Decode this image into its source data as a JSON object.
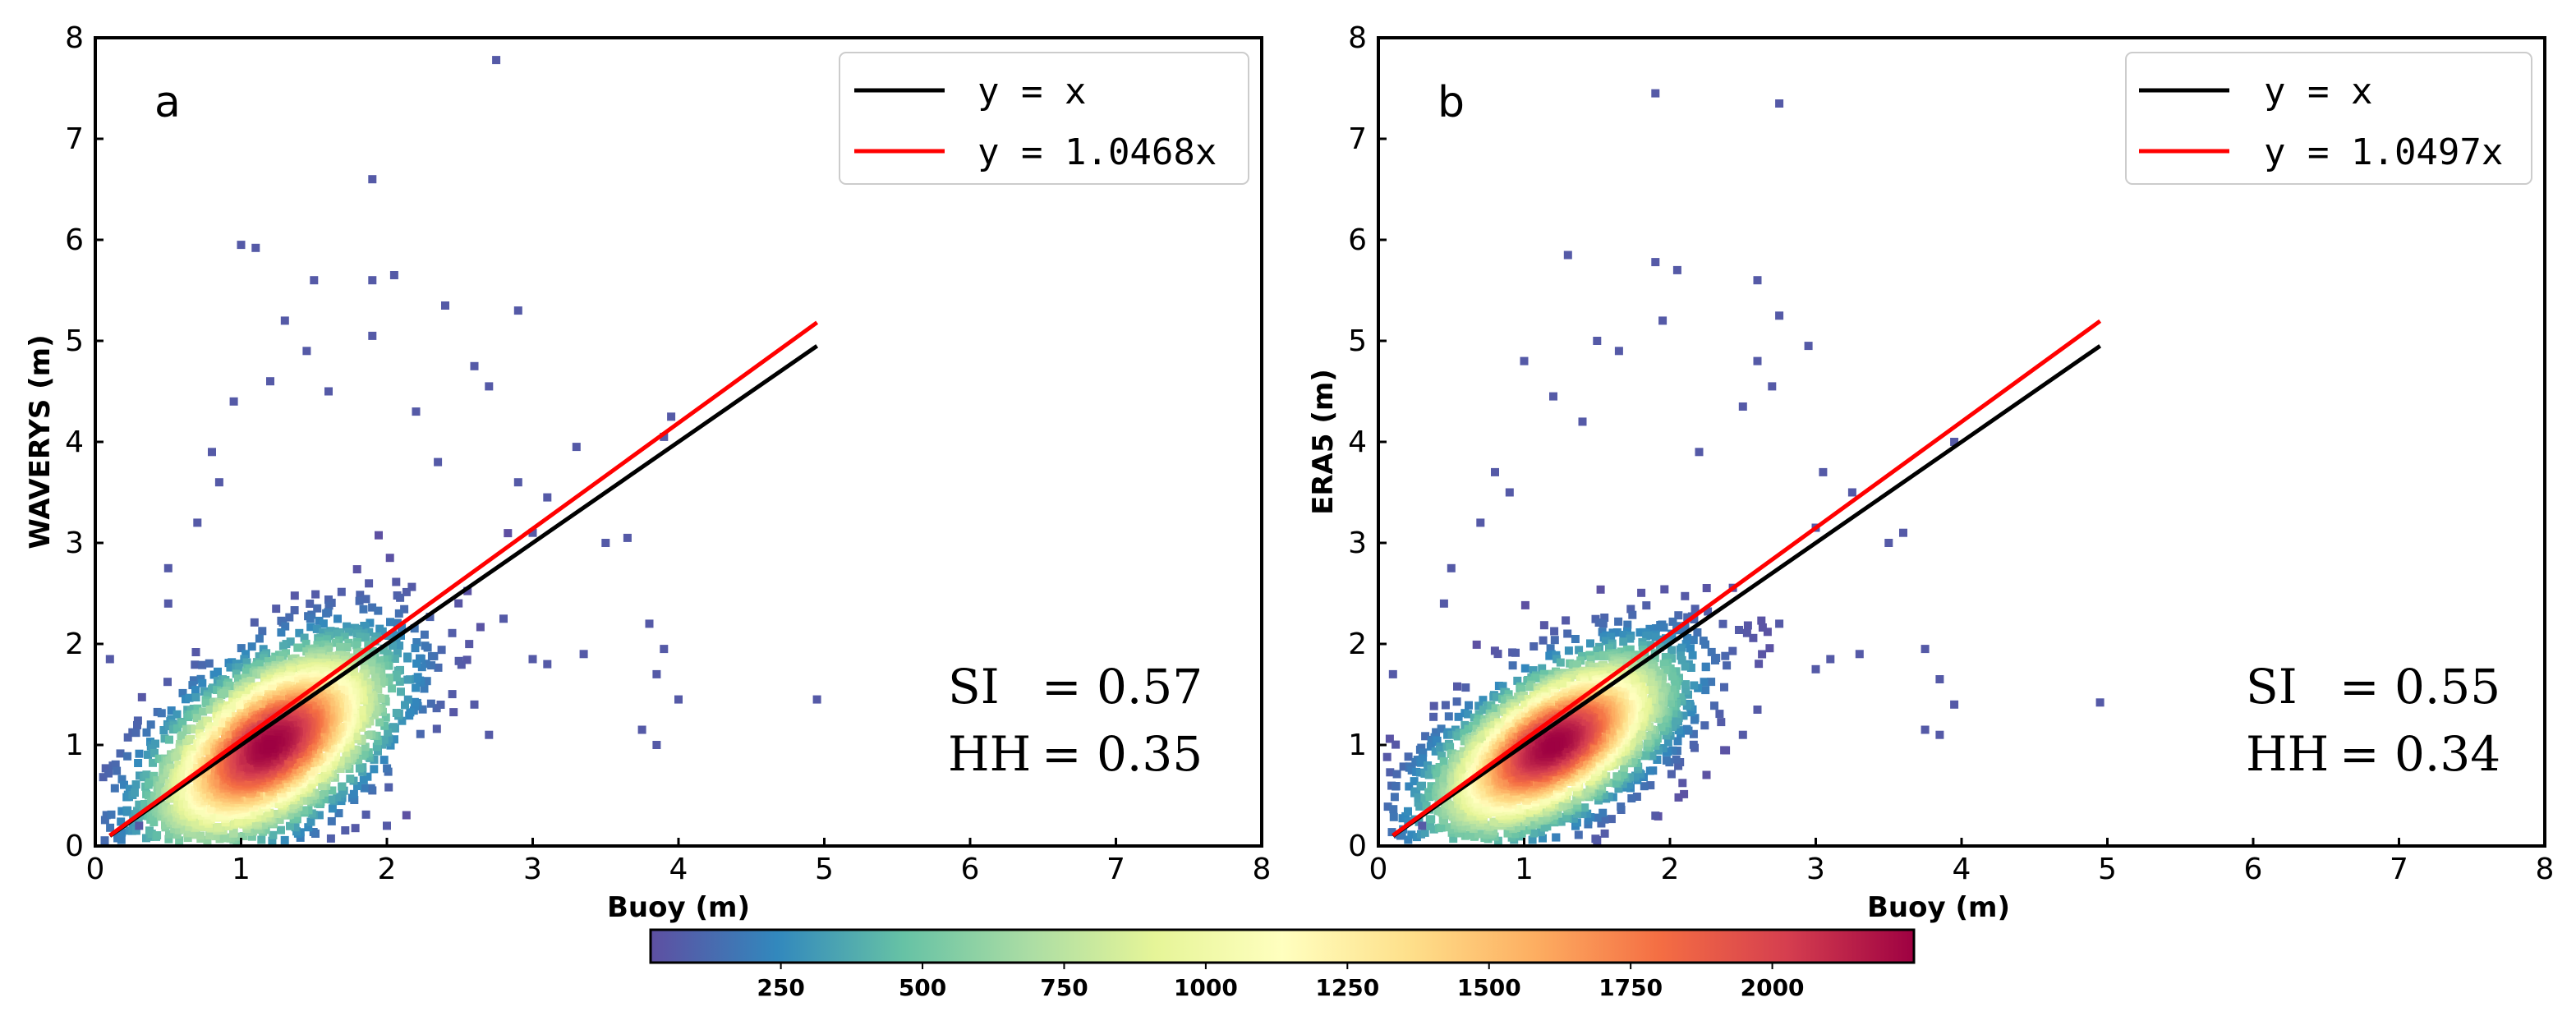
{
  "chart_data": [
    {
      "type": "scatter",
      "panel": "a",
      "xlabel": "Buoy (m)",
      "ylabel": "WAVERYS (m)",
      "xlim": [
        0,
        8
      ],
      "ylim": [
        0,
        8
      ],
      "xticks": [
        "0",
        "1",
        "2",
        "3",
        "4",
        "5",
        "6",
        "7",
        "8"
      ],
      "yticks": [
        "0",
        "1",
        "2",
        "3",
        "4",
        "5",
        "6",
        "7",
        "8"
      ],
      "legend": {
        "position": "top-right",
        "entries": [
          {
            "label": "y = x",
            "color": "#000000",
            "slope": 1.0
          },
          {
            "label": "y = 1.0468x",
            "color": "#ff0000",
            "slope": 1.0468
          }
        ]
      },
      "fit_x_range": [
        0.1,
        4.95
      ],
      "stats": [
        {
          "name": "SI",
          "value": "= 0.57"
        },
        {
          "name": "HH",
          "value": "= 0.35"
        }
      ],
      "density_core": {
        "x_mean": 1.2,
        "y_mean": 1.0,
        "x_sd": 0.45,
        "y_sd": 0.55,
        "rho": 0.55
      },
      "outliers": [
        [
          2.75,
          7.78
        ],
        [
          1.9,
          6.6
        ],
        [
          1.0,
          5.95
        ],
        [
          1.1,
          5.92
        ],
        [
          1.5,
          5.6
        ],
        [
          2.05,
          5.65
        ],
        [
          1.9,
          5.6
        ],
        [
          2.9,
          5.3
        ],
        [
          2.4,
          5.35
        ],
        [
          1.3,
          5.2
        ],
        [
          1.9,
          5.05
        ],
        [
          2.6,
          4.75
        ],
        [
          2.7,
          4.55
        ],
        [
          3.95,
          4.25
        ],
        [
          3.9,
          4.05
        ],
        [
          3.3,
          3.95
        ],
        [
          2.9,
          3.6
        ],
        [
          3.1,
          3.45
        ],
        [
          3.0,
          3.1
        ],
        [
          3.5,
          3.0
        ],
        [
          3.65,
          3.05
        ],
        [
          3.8,
          2.2
        ],
        [
          3.85,
          1.7
        ],
        [
          3.9,
          1.95
        ],
        [
          4.0,
          1.45
        ],
        [
          3.75,
          1.15
        ],
        [
          3.85,
          1.0
        ],
        [
          4.95,
          1.45
        ],
        [
          3.35,
          1.9
        ],
        [
          3.0,
          1.85
        ],
        [
          3.1,
          1.8
        ],
        [
          2.8,
          2.25
        ],
        [
          2.6,
          1.4
        ],
        [
          2.7,
          1.1
        ],
        [
          0.1,
          1.85
        ],
        [
          0.5,
          2.75
        ],
        [
          0.5,
          2.4
        ],
        [
          0.3,
          0.2
        ],
        [
          2.0,
          0.2
        ],
        [
          0.8,
          3.9
        ],
        [
          1.2,
          4.6
        ],
        [
          1.6,
          4.5
        ],
        [
          2.2,
          4.3
        ],
        [
          0.95,
          4.4
        ],
        [
          1.45,
          4.9
        ],
        [
          2.35,
          3.8
        ],
        [
          0.7,
          3.2
        ],
        [
          0.85,
          3.6
        ]
      ]
    },
    {
      "type": "scatter",
      "panel": "b",
      "xlabel": "Buoy (m)",
      "ylabel": "ERA5 (m)",
      "xlim": [
        0,
        8
      ],
      "ylim": [
        0,
        8
      ],
      "xticks": [
        "0",
        "1",
        "2",
        "3",
        "4",
        "5",
        "6",
        "7",
        "8"
      ],
      "yticks": [
        "0",
        "1",
        "2",
        "3",
        "4",
        "5",
        "6",
        "7",
        "8"
      ],
      "legend": {
        "position": "top-right",
        "entries": [
          {
            "label": "y = x",
            "color": "#000000",
            "slope": 1.0
          },
          {
            "label": "y = 1.0497x",
            "color": "#ff0000",
            "slope": 1.0497
          }
        ]
      },
      "fit_x_range": [
        0.1,
        4.95
      ],
      "stats": [
        {
          "name": "SI",
          "value": "= 0.55"
        },
        {
          "name": "HH",
          "value": "= 0.34"
        }
      ],
      "density_core": {
        "x_mean": 1.2,
        "y_mean": 1.0,
        "x_sd": 0.45,
        "y_sd": 0.5,
        "rho": 0.6
      },
      "outliers": [
        [
          1.9,
          7.45
        ],
        [
          2.75,
          7.35
        ],
        [
          1.3,
          5.85
        ],
        [
          1.9,
          5.78
        ],
        [
          2.05,
          5.7
        ],
        [
          2.6,
          5.6
        ],
        [
          2.75,
          5.25
        ],
        [
          1.5,
          5.0
        ],
        [
          1.95,
          5.2
        ],
        [
          2.95,
          4.95
        ],
        [
          2.6,
          4.8
        ],
        [
          2.7,
          4.55
        ],
        [
          2.5,
          4.35
        ],
        [
          3.95,
          4.0
        ],
        [
          3.25,
          3.5
        ],
        [
          3.05,
          3.7
        ],
        [
          3.0,
          3.15
        ],
        [
          3.5,
          3.0
        ],
        [
          3.6,
          3.1
        ],
        [
          3.75,
          1.95
        ],
        [
          3.85,
          1.65
        ],
        [
          3.95,
          1.4
        ],
        [
          3.75,
          1.15
        ],
        [
          3.85,
          1.1
        ],
        [
          4.95,
          1.42
        ],
        [
          3.3,
          1.9
        ],
        [
          3.1,
          1.85
        ],
        [
          3.0,
          1.75
        ],
        [
          2.75,
          2.2
        ],
        [
          2.6,
          1.35
        ],
        [
          2.5,
          1.1
        ],
        [
          0.1,
          1.7
        ],
        [
          0.5,
          2.75
        ],
        [
          0.45,
          2.4
        ],
        [
          0.3,
          0.2
        ],
        [
          1.9,
          0.3
        ],
        [
          0.8,
          3.7
        ],
        [
          1.0,
          4.8
        ],
        [
          1.2,
          4.45
        ],
        [
          1.65,
          4.9
        ],
        [
          2.2,
          3.9
        ],
        [
          0.7,
          3.2
        ],
        [
          0.9,
          3.5
        ],
        [
          1.4,
          4.2
        ]
      ]
    }
  ],
  "colorbar": {
    "ticks": [
      "250",
      "500",
      "750",
      "1000",
      "1250",
      "1500",
      "1750",
      "2000"
    ],
    "tick_values": [
      250,
      500,
      750,
      1000,
      1250,
      1500,
      1750,
      2000
    ],
    "range": [
      20,
      2250
    ],
    "colormap": "Spectral_r",
    "stops": [
      "#5e4fa2",
      "#3288bd",
      "#66c2a5",
      "#abdda4",
      "#e6f598",
      "#ffffbf",
      "#fee08b",
      "#fdae61",
      "#f46d43",
      "#d53e4f",
      "#9e0142"
    ]
  }
}
